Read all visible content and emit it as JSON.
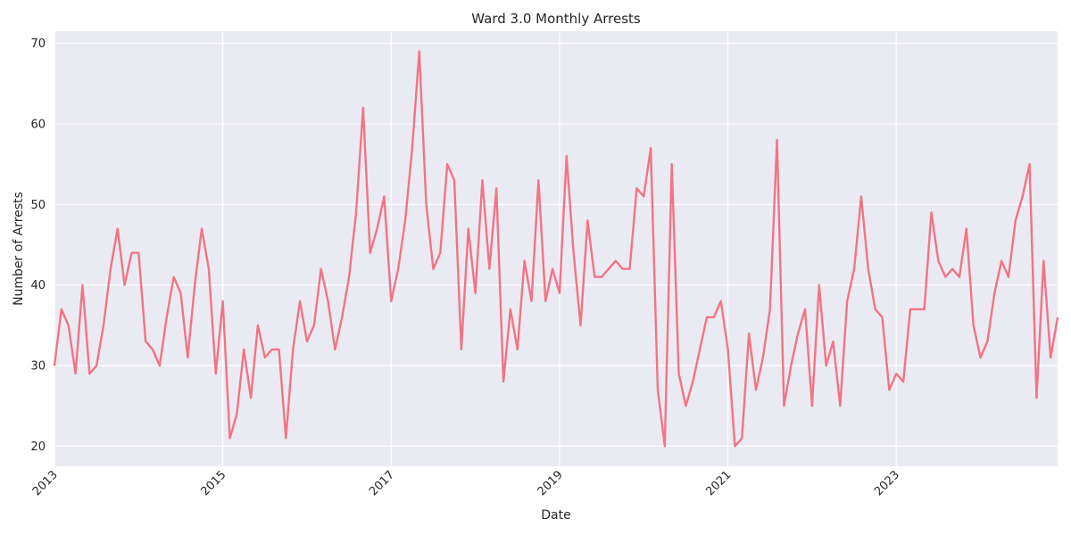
{
  "chart_data": {
    "type": "line",
    "title": "Ward 3.0 Monthly Arrests",
    "xlabel": "Date",
    "ylabel": "Number of Arrests",
    "xlim": [
      "2013-01",
      "2024-12"
    ],
    "ylim": [
      17.5,
      71.5
    ],
    "yticks": [
      20,
      30,
      40,
      50,
      60,
      70
    ],
    "xticks": [
      "2013",
      "2015",
      "2017",
      "2019",
      "2021",
      "2023"
    ],
    "grid": true,
    "background": "#eaeaf2",
    "line_color": "#f37386",
    "series": [
      {
        "x_start": "2013-01",
        "x_step": "month",
        "values": [
          30,
          37,
          35,
          29,
          40,
          29,
          30,
          35,
          42,
          47,
          40,
          44,
          44,
          33,
          32,
          30,
          36,
          41,
          39,
          31,
          40,
          47,
          42,
          29,
          38,
          21,
          24,
          32,
          26,
          35,
          31,
          32,
          32,
          21,
          32,
          38,
          33,
          35,
          42,
          38,
          32,
          36,
          41,
          49,
          62,
          44,
          47,
          51,
          38,
          42,
          48,
          57,
          69,
          50,
          42,
          44,
          55,
          53,
          32,
          47,
          39,
          53,
          42,
          52,
          28,
          37,
          32,
          43,
          38,
          53,
          38,
          42,
          39,
          56,
          44,
          35,
          48,
          41,
          41,
          42,
          43,
          42,
          42,
          52,
          51,
          57,
          27,
          20,
          55,
          29,
          25,
          28,
          32,
          36,
          36,
          38,
          32,
          20,
          21,
          34,
          27,
          31,
          37,
          58,
          25,
          30,
          34,
          37,
          25,
          40,
          30,
          33,
          25,
          38,
          42,
          51,
          42,
          37,
          36,
          27,
          29,
          28,
          37,
          37,
          37,
          49,
          43,
          41,
          42,
          41,
          47,
          35,
          31,
          33,
          39,
          43,
          41,
          48,
          51,
          55,
          26,
          43,
          31,
          36
        ]
      }
    ]
  }
}
